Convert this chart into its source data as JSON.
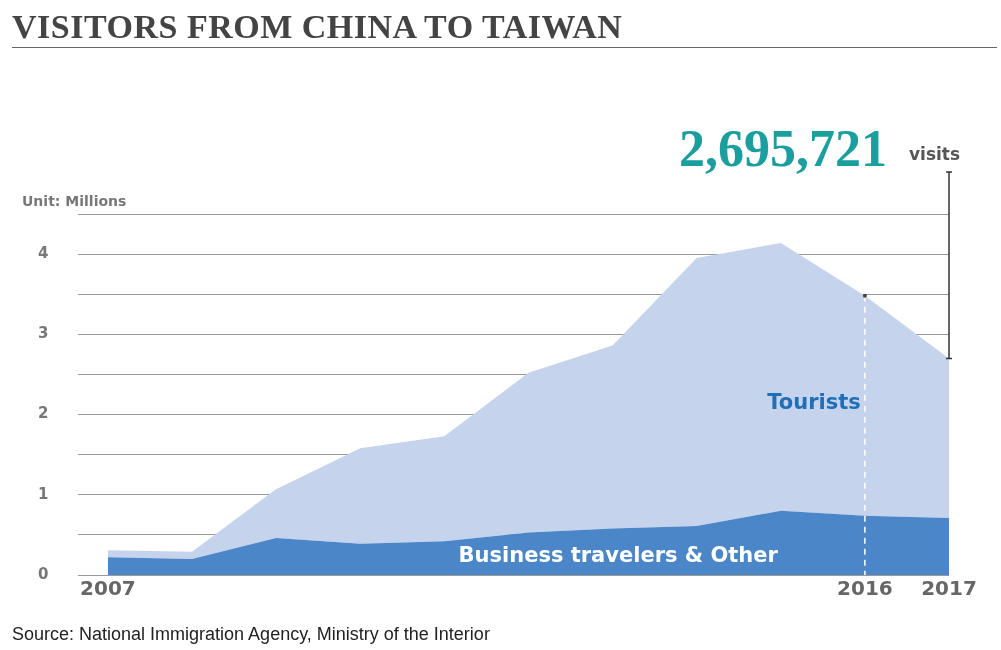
{
  "chart_data": {
    "type": "area",
    "title": "VISITORS FROM CHINA TO TAIWAN",
    "ylabel": "Unit: Millions",
    "x": [
      2007,
      2008,
      2009,
      2010,
      2011,
      2012,
      2013,
      2014,
      2015,
      2016,
      2017
    ],
    "stacked": true,
    "series": [
      {
        "name": "Business travelers & Other",
        "color": "#4a86c8",
        "values": [
          0.22,
          0.2,
          0.46,
          0.39,
          0.42,
          0.53,
          0.58,
          0.61,
          0.8,
          0.74,
          0.71
        ]
      },
      {
        "name": "Tourists",
        "color": "#c5d3ec",
        "values": [
          0.09,
          0.09,
          0.61,
          1.19,
          1.31,
          1.99,
          2.28,
          3.34,
          3.34,
          2.74,
          1.99
        ]
      }
    ],
    "xlim": [
      2006.65,
      2017
    ],
    "xticks": [
      2007,
      2016,
      2017
    ],
    "ylim": [
      0,
      4.5
    ],
    "yticks": [
      0,
      {
        "value": 0.5,
        "label": null
      },
      1,
      {
        "value": 1.5,
        "label": null
      },
      2,
      {
        "value": 2.5,
        "label": null
      },
      3,
      {
        "value": 3.5,
        "label": null
      },
      4,
      {
        "value": 4.5,
        "label": null
      }
    ],
    "grid": "y",
    "legend": false,
    "ref_lines": [
      {
        "axis": "x",
        "value": 2016,
        "color": "#ffffff",
        "line_style": "dashed"
      }
    ],
    "annotations": [
      {
        "text": "2,695,721",
        "x": 2017,
        "y": 2.7
      },
      "visits",
      "Source: National Immigration Agency, Ministry of the Interior"
    ]
  }
}
